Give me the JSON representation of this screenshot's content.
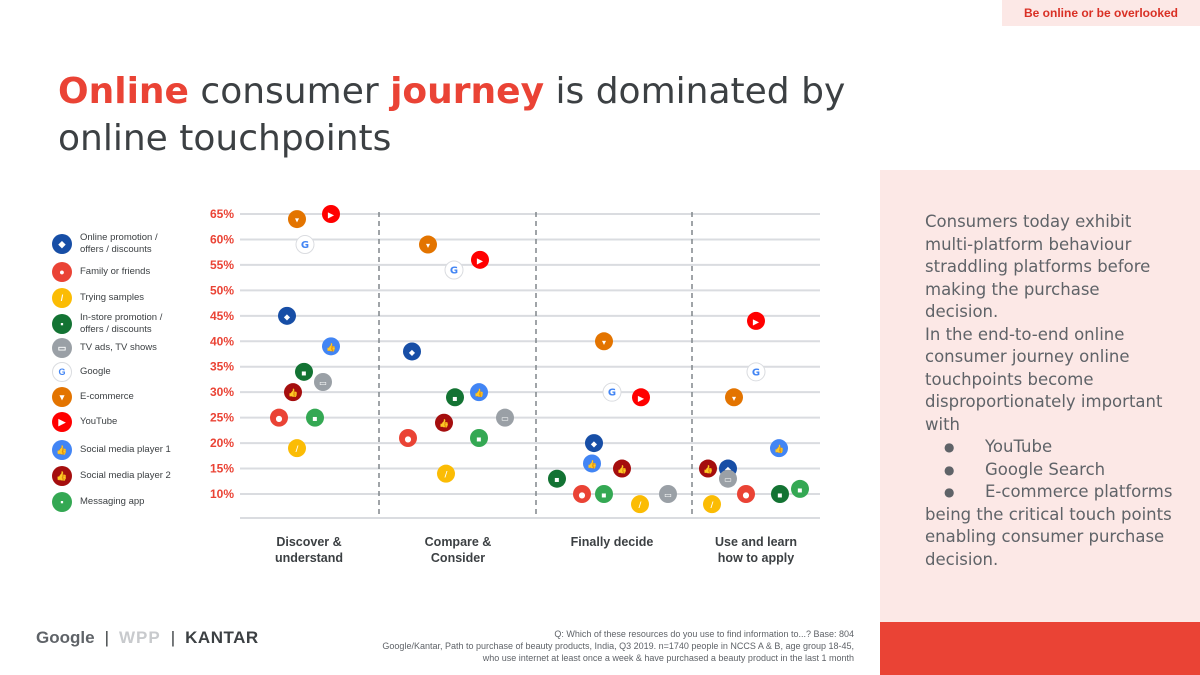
{
  "tagline": "Be online or be overlooked",
  "title": {
    "w1": "Online",
    "w2": " consumer ",
    "w3": "journey",
    "w4": " is dominated by online touchpoints"
  },
  "legend": [
    {
      "label": "Online promotion /\noffers / discounts",
      "color": "#174ea6",
      "icon": "tag-icon",
      "glyph": "◆"
    },
    {
      "label": "Family or friends",
      "color": "#ea4335",
      "icon": "person-icon",
      "glyph": "●"
    },
    {
      "label": "Trying samples",
      "color": "#fbbc04",
      "icon": "sample-icon",
      "glyph": "/"
    },
    {
      "label": "In-store promotion /\noffers / discounts",
      "color": "#137333",
      "icon": "store-icon",
      "glyph": "▪"
    },
    {
      "label": "TV ads, TV shows",
      "color": "#9aa0a6",
      "icon": "tv-icon",
      "glyph": "▭"
    },
    {
      "label": "Google",
      "color": "#ffffff",
      "icon": "google-icon",
      "glyph": "G"
    },
    {
      "label": "E-commerce",
      "color": "#e37400",
      "icon": "cart-icon",
      "glyph": "▾"
    },
    {
      "label": "YouTube",
      "color": "#ff0000",
      "icon": "youtube-icon",
      "glyph": "▶"
    },
    {
      "label": "Social media player 1",
      "color": "#4285f4",
      "icon": "thumbs-up-icon",
      "glyph": "👍"
    },
    {
      "label": "Social media player 2",
      "color": "#a50e0e",
      "icon": "thumbs-up-icon",
      "glyph": "👍"
    },
    {
      "label": "Messaging app",
      "color": "#34a853",
      "icon": "chat-icon",
      "glyph": "▪"
    }
  ],
  "chart_data": {
    "type": "scatter",
    "title": "",
    "ylabel": "",
    "ylim": [
      10,
      65
    ],
    "ticks": [
      "65%",
      "60%",
      "55%",
      "50%",
      "45%",
      "40%",
      "35%",
      "30%",
      "25%",
      "20%",
      "15%",
      "10%"
    ],
    "categories": [
      "Discover &\nunderstand",
      "Compare &\nConsider",
      "Finally decide",
      "Use and learn\nhow to apply"
    ],
    "series": [
      {
        "name": "Online promotion / offers / discounts",
        "values": [
          45,
          38,
          20,
          15
        ]
      },
      {
        "name": "Family or friends",
        "values": [
          25,
          21,
          10,
          10
        ]
      },
      {
        "name": "Trying samples",
        "values": [
          19,
          14,
          8,
          8
        ]
      },
      {
        "name": "In-store promotion / offers / discounts",
        "values": [
          34,
          29,
          13,
          10
        ]
      },
      {
        "name": "TV ads, TV shows",
        "values": [
          32,
          25,
          10,
          13
        ]
      },
      {
        "name": "Google",
        "values": [
          59,
          54,
          30,
          34
        ]
      },
      {
        "name": "E-commerce",
        "values": [
          64,
          59,
          40,
          29
        ]
      },
      {
        "name": "YouTube",
        "values": [
          65,
          56,
          29,
          44
        ]
      },
      {
        "name": "Social media player 1",
        "values": [
          39,
          30,
          16,
          19
        ]
      },
      {
        "name": "Social media player 2",
        "values": [
          30,
          24,
          15,
          15
        ]
      },
      {
        "name": "Messaging app",
        "values": [
          25,
          21,
          10,
          11
        ]
      }
    ]
  },
  "panel": {
    "intro": "Consumers today exhibit multi-platform behaviour straddling platforms before making the purchase decision.",
    "lead": "In the end-to-end online consumer journey online touchpoints become disproportionately important with",
    "bullets": [
      "YouTube",
      "Google Search",
      "E-commerce platforms"
    ],
    "outro": "being the critical touch points enabling consumer purchase decision."
  },
  "footer": {
    "google": "Google",
    "sep": "|",
    "wpp": "WPP",
    "kantar": "KANTAR",
    "question": "Q: Which of these resources do you use to find information to...?   Base: 804",
    "source1": "Google/Kantar, Path to purchase of beauty products, India, Q3 2019. n=1740 people in NCCS A & B, age group 18-45,",
    "source2": "who use internet at least once a week & have purchased a beauty product in the last 1 month"
  }
}
